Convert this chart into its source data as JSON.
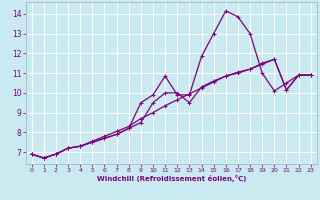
{
  "background_color": "#c8eaf0",
  "grid_color": "#b8d8e0",
  "line_color": "#800080",
  "xlabel": "Windchill (Refroidissement éolien,°C)",
  "xlabel_color": "#800080",
  "tick_color": "#800080",
  "xlim": [
    -0.5,
    23.5
  ],
  "ylim": [
    6.4,
    14.6
  ],
  "yticks": [
    7,
    8,
    9,
    10,
    11,
    12,
    13,
    14
  ],
  "xticks": [
    0,
    1,
    2,
    3,
    4,
    5,
    6,
    7,
    8,
    9,
    10,
    11,
    12,
    13,
    14,
    15,
    16,
    17,
    18,
    19,
    20,
    21,
    22,
    23
  ],
  "series1_x": [
    0,
    1,
    2,
    3,
    4,
    5,
    6,
    7,
    8,
    9,
    10,
    11,
    12,
    13,
    14,
    15,
    16,
    17,
    18,
    19,
    20,
    21,
    22,
    23
  ],
  "series1_y": [
    6.9,
    6.7,
    6.9,
    7.2,
    7.3,
    7.5,
    7.7,
    7.9,
    8.2,
    9.5,
    9.9,
    10.85,
    9.9,
    9.9,
    11.85,
    13.0,
    14.15,
    13.85,
    13.0,
    11.0,
    10.1,
    10.5,
    10.9,
    10.9
  ],
  "series2_x": [
    0,
    1,
    2,
    3,
    4,
    5,
    6,
    7,
    8,
    9,
    10,
    11,
    12,
    13,
    14,
    15,
    16,
    17,
    18,
    19,
    20,
    21,
    22,
    23
  ],
  "series2_y": [
    6.9,
    6.7,
    6.9,
    7.2,
    7.3,
    7.5,
    7.7,
    7.9,
    8.2,
    8.5,
    9.5,
    10.0,
    10.0,
    9.5,
    10.3,
    10.6,
    10.85,
    11.0,
    11.2,
    11.5,
    11.7,
    10.15,
    10.9,
    10.9
  ],
  "series3_x": [
    0,
    1,
    2,
    3,
    4,
    5,
    6,
    7,
    8,
    9,
    10,
    11,
    12,
    13,
    14,
    15,
    16,
    17,
    18,
    19,
    20,
    21,
    22,
    23
  ],
  "series3_y": [
    6.9,
    6.7,
    6.9,
    7.2,
    7.3,
    7.55,
    7.8,
    8.05,
    8.3,
    8.7,
    9.0,
    9.35,
    9.65,
    9.95,
    10.25,
    10.55,
    10.85,
    11.05,
    11.2,
    11.45,
    11.7,
    10.15,
    10.9,
    10.9
  ]
}
